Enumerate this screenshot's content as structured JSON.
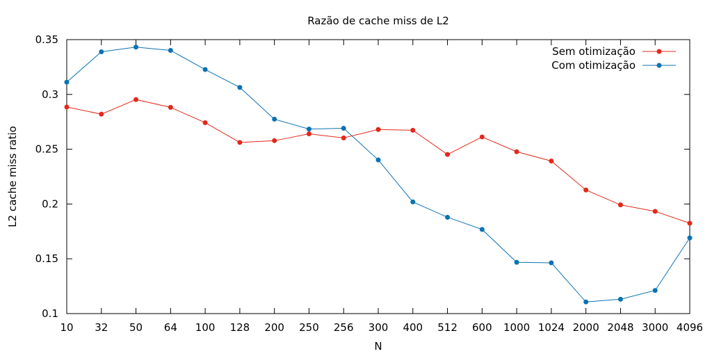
{
  "chart_data": {
    "type": "line",
    "title": "Razão de cache miss de L2",
    "xlabel": "N",
    "ylabel": "L2 cache miss ratio",
    "categories": [
      "10",
      "32",
      "50",
      "64",
      "100",
      "128",
      "200",
      "250",
      "256",
      "300",
      "400",
      "512",
      "600",
      "1000",
      "1024",
      "2000",
      "2048",
      "3000",
      "4096"
    ],
    "ylim": [
      0.1,
      0.35
    ],
    "yticks": [
      "0.1",
      "0.15",
      "0.2",
      "0.25",
      "0.3",
      "0.35"
    ],
    "grid": false,
    "legend_position": "top-right",
    "series": [
      {
        "name": "Sem otimização",
        "color": "#e3281a",
        "values": [
          0.2885,
          0.282,
          0.2953,
          0.2882,
          0.2742,
          0.2562,
          0.2578,
          0.264,
          0.2603,
          0.268,
          0.2673,
          0.2452,
          0.2612,
          0.2477,
          0.2392,
          0.2128,
          0.1992,
          0.1933,
          0.1825
        ]
      },
      {
        "name": "Com otimização",
        "color": "#0a72b3",
        "values": [
          0.3112,
          0.3389,
          0.3432,
          0.3402,
          0.3227,
          0.3064,
          0.2774,
          0.2684,
          0.2691,
          0.2402,
          0.2019,
          0.1879,
          0.1768,
          0.1468,
          0.1463,
          0.1106,
          0.1131,
          0.1211,
          0.1691
        ]
      }
    ]
  }
}
